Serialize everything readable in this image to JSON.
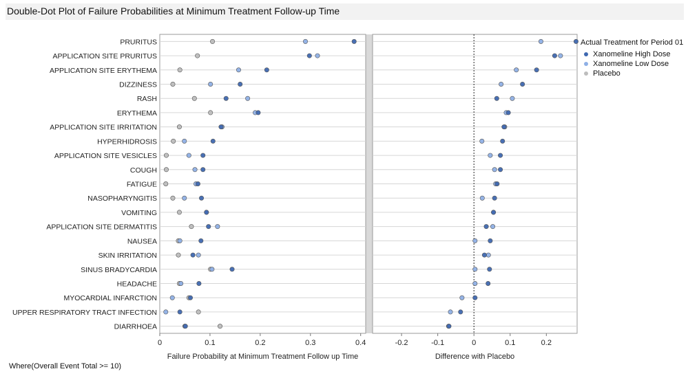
{
  "title": "Double-Dot Plot of Failure Probabilities at Minimum Treatment Follow-up Time",
  "footer": "Where(Overall Event Total >= 10)",
  "legend": {
    "title": "Actual Treatment for Period 01",
    "items": [
      {
        "name": "Xanomeline High Dose",
        "color": "#3f68b0"
      },
      {
        "name": "Xanomeline Low Dose",
        "color": "#8fb0e6"
      },
      {
        "name": "Placebo",
        "color": "#bdbdbd"
      }
    ]
  },
  "chart_data": [
    {
      "type": "scatter",
      "xlabel": "Failure Probability at Minimum Treatment Follow up Time",
      "xlim": [
        0,
        0.41
      ],
      "xticks": [
        0,
        0.1,
        0.2,
        0.3,
        0.4
      ],
      "xtick_labels": [
        "0",
        "0.1",
        "0.2",
        "0.3",
        "0.4"
      ],
      "categories": [
        "PRURITUS",
        "APPLICATION SITE PRURITUS",
        "APPLICATION SITE ERYTHEMA",
        "DIZZINESS",
        "RASH",
        "ERYTHEMA",
        "APPLICATION SITE IRRITATION",
        "HYPERHIDROSIS",
        "APPLICATION SITE VESICLES",
        "COUGH",
        "FATIGUE",
        "NASOPHARYNGITIS",
        "VOMITING",
        "APPLICATION SITE DERMATITIS",
        "NAUSEA",
        "SKIN IRRITATION",
        "SINUS BRADYCARDIA",
        "HEADACHE",
        "MYOCARDIAL INFARCTION",
        "UPPER RESPIRATORY TRACT INFECTION",
        "DIARRHOEA"
      ],
      "series": [
        {
          "name": "Xanomeline High Dose",
          "color": "#3f68b0",
          "values": [
            0.387,
            0.298,
            0.213,
            0.16,
            0.132,
            0.196,
            0.122,
            0.106,
            0.086,
            0.086,
            0.076,
            0.083,
            0.093,
            0.097,
            0.082,
            0.066,
            0.144,
            0.078,
            0.061,
            0.04,
            0.051
          ]
        },
        {
          "name": "Xanomeline Low Dose",
          "color": "#8fb0e6",
          "values": [
            0.29,
            0.314,
            0.157,
            0.101,
            0.175,
            0.19,
            0.124,
            0.049,
            0.058,
            0.07,
            0.072,
            0.049,
            0.093,
            0.115,
            0.04,
            0.077,
            0.104,
            0.042,
            0.025,
            0.012,
            0.05
          ]
        },
        {
          "name": "Placebo",
          "color": "#bdbdbd",
          "values": [
            0.105,
            0.075,
            0.04,
            0.026,
            0.069,
            0.101,
            0.039,
            0.027,
            0.013,
            0.013,
            0.012,
            0.026,
            0.039,
            0.063,
            0.037,
            0.037,
            0.101,
            0.039,
            0.058,
            0.077,
            0.12
          ]
        }
      ]
    },
    {
      "type": "scatter",
      "xlabel": "Difference with Placebo",
      "xlim": [
        -0.28,
        0.285
      ],
      "xticks": [
        -0.2,
        -0.1,
        0,
        0.1,
        0.2
      ],
      "xtick_labels": [
        "-0.2",
        "-0.1",
        "0",
        "0.1",
        "0.2"
      ],
      "reference_line": 0,
      "categories": [
        "PRURITUS",
        "APPLICATION SITE PRURITUS",
        "APPLICATION SITE ERYTHEMA",
        "DIZZINESS",
        "RASH",
        "ERYTHEMA",
        "APPLICATION SITE IRRITATION",
        "HYPERHIDROSIS",
        "APPLICATION SITE VESICLES",
        "COUGH",
        "FATIGUE",
        "NASOPHARYNGITIS",
        "VOMITING",
        "APPLICATION SITE DERMATITIS",
        "NAUSEA",
        "SKIN IRRITATION",
        "SINUS BRADYCARDIA",
        "HEADACHE",
        "MYOCARDIAL INFARCTION",
        "UPPER RESPIRATORY TRACT INFECTION",
        "DIARRHOEA"
      ],
      "series": [
        {
          "name": "Xanomeline High Dose",
          "color": "#3f68b0",
          "values": [
            0.282,
            0.223,
            0.173,
            0.134,
            0.063,
            0.095,
            0.083,
            0.079,
            0.073,
            0.073,
            0.064,
            0.057,
            0.054,
            0.034,
            0.045,
            0.029,
            0.043,
            0.039,
            0.003,
            -0.037,
            -0.069
          ]
        },
        {
          "name": "Xanomeline Low Dose",
          "color": "#8fb0e6",
          "values": [
            0.185,
            0.239,
            0.117,
            0.075,
            0.106,
            0.089,
            0.085,
            0.022,
            0.045,
            0.057,
            0.06,
            0.023,
            0.054,
            0.052,
            0.003,
            0.04,
            0.003,
            0.003,
            -0.033,
            -0.065,
            -0.07
          ]
        }
      ]
    }
  ]
}
